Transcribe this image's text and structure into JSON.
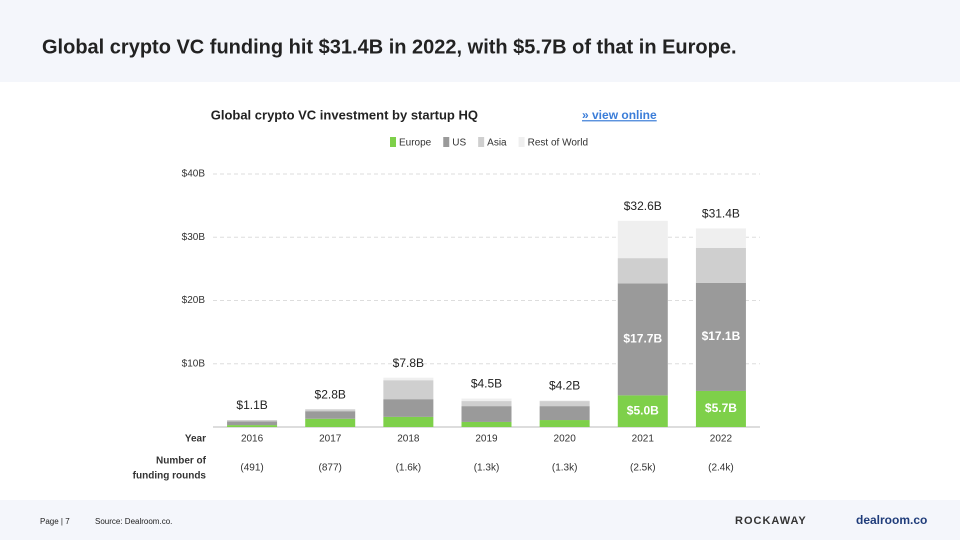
{
  "header": {
    "title": "Global crypto VC funding hit $31.4B in 2022, with $5.7B of that in Europe."
  },
  "chart_data": {
    "type": "stacked-bar",
    "title": "Global crypto VC investment by startup HQ",
    "link": "» view online",
    "x_label": "Year",
    "categories": [
      "2016",
      "2017",
      "2018",
      "2019",
      "2020",
      "2021",
      "2022"
    ],
    "series": [
      {
        "name": "Europe",
        "color": "#7ed04a",
        "values": [
          0.3,
          1.3,
          1.6,
          0.8,
          1.1,
          5.0,
          5.7
        ],
        "value_labels": [
          null,
          null,
          null,
          null,
          null,
          "$5.0B",
          "$5.7B"
        ]
      },
      {
        "name": "US",
        "color": "#9a9a9a",
        "values": [
          0.6,
          1.2,
          2.8,
          2.5,
          2.2,
          17.7,
          17.1
        ],
        "value_labels": [
          null,
          null,
          null,
          null,
          null,
          "$17.7B",
          "$17.1B"
        ]
      },
      {
        "name": "Asia",
        "color": "#cfcfcf",
        "values": [
          0.2,
          0.3,
          3.0,
          0.8,
          0.8,
          4.0,
          5.5
        ]
      },
      {
        "name": "Rest of World",
        "color": "#efefef",
        "values": [
          0,
          0,
          0.4,
          0.4,
          0.1,
          5.9,
          3.1
        ]
      }
    ],
    "totals": {
      "values": [
        1.1,
        2.8,
        7.8,
        4.5,
        4.2,
        32.6,
        31.4
      ],
      "value_labels": [
        "$1.1B",
        "$2.8B",
        "$7.8B",
        "$4.5B",
        "$4.2B",
        "$32.6B",
        "$31.4B"
      ]
    },
    "rounds_label": [
      "Number of",
      "funding rounds"
    ],
    "rounds": [
      "(491)",
      "(877)",
      "(1.6k)",
      "(1.3k)",
      "(1.3k)",
      "(2.5k)",
      "(2.4k)"
    ],
    "ylim": [
      0,
      40
    ],
    "yticks": [
      {
        "value": 10,
        "label": "$10B"
      },
      {
        "value": 20,
        "label": "$20B"
      },
      {
        "value": 30,
        "label": "$30B"
      },
      {
        "value": 40,
        "label": "$40B"
      }
    ],
    "grid": true
  },
  "footer": {
    "page": "Page | 7",
    "source": "Source: Dealroom.co.",
    "logos": [
      "ROCKAWAY",
      "dealroom.co"
    ]
  }
}
